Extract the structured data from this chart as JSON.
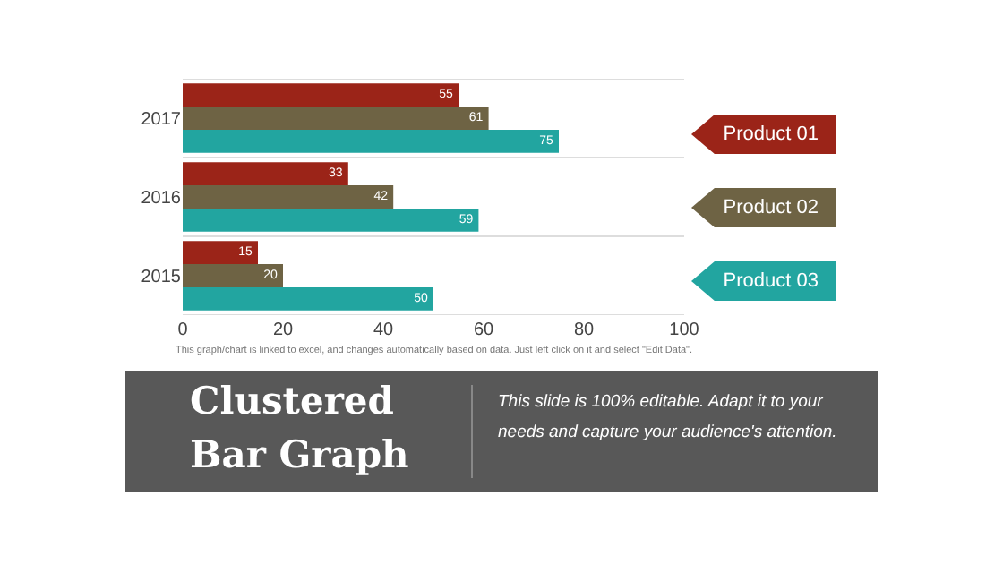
{
  "chart_data": {
    "type": "bar",
    "orientation": "horizontal",
    "title": "Clustered Bar Graph",
    "subtitle": "This slide is 100% editable. Adapt it to your needs and capture your audience's attention.",
    "categories": [
      "2017",
      "2016",
      "2015"
    ],
    "series": [
      {
        "name": "Product 01",
        "color": "#9b2418",
        "values": [
          55,
          33,
          15
        ]
      },
      {
        "name": "Product 02",
        "color": "#6e6344",
        "values": [
          61,
          42,
          20
        ]
      },
      {
        "name": "Product 03",
        "color": "#22a5a0",
        "values": [
          75,
          59,
          50
        ]
      }
    ],
    "xlim": [
      0,
      100
    ],
    "xticks": [
      0,
      20,
      40,
      60,
      80,
      100
    ],
    "grid": "y",
    "legend": "right",
    "data_labels": true,
    "annotations": [
      "This graph/chart is linked to excel, and changes automatically based on data. Just left click on it and select \"Edit Data\"."
    ]
  }
}
